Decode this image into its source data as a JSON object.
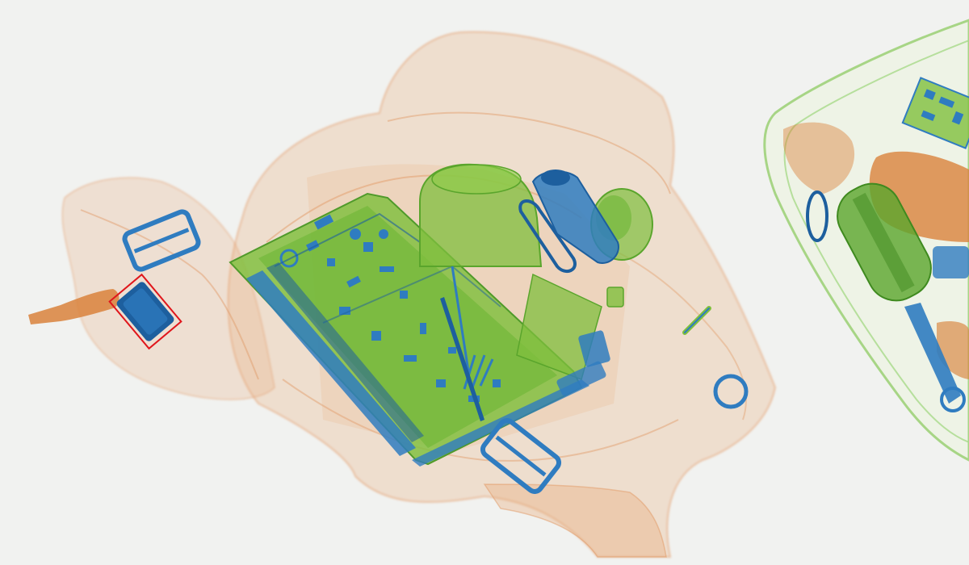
{
  "scan": {
    "kind": "x-ray baggage scan",
    "background_color": "#f1f2f0",
    "palette": {
      "organic": "#e7a876",
      "organic_dense": "#d9823c",
      "mixed": "#7fbf3d",
      "mixed_dense": "#5aa52c",
      "inorganic": "#2f7cc0",
      "inorganic_dense": "#1d5f9e",
      "detection_box": "#e0161c"
    }
  },
  "detections": [
    {
      "object": "suspicious-item",
      "box_color": "#e0161c"
    }
  ]
}
